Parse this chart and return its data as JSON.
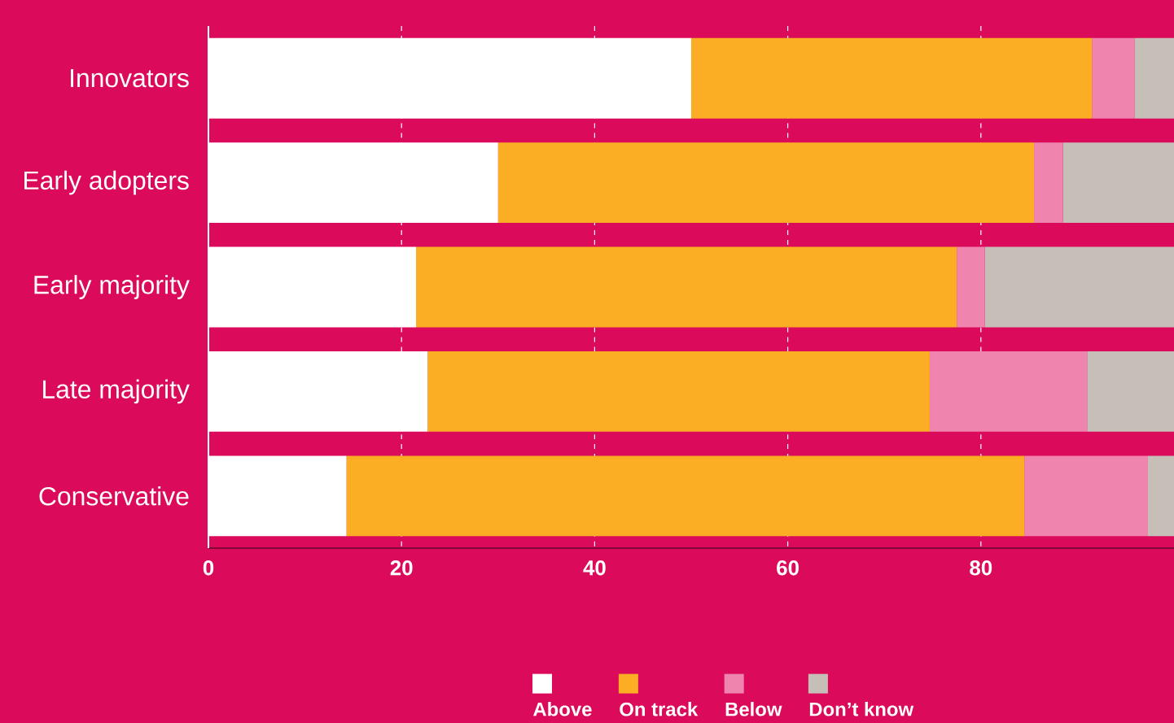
{
  "chart_data": {
    "type": "bar",
    "orientation": "horizontal",
    "stacked": true,
    "categories": [
      "Innovators",
      "Early adopters",
      "Early majority",
      "Late majority",
      "Conservative"
    ],
    "series": [
      {
        "name": "Above",
        "color": "#ffffff",
        "values": [
          50,
          30,
          21.5,
          22.7,
          14.3
        ]
      },
      {
        "name": "On track",
        "color": "#fbae24",
        "values": [
          41.5,
          55.5,
          56,
          52,
          70.2
        ]
      },
      {
        "name": "Below",
        "color": "#ef84ae",
        "values": [
          4.4,
          3,
          2.9,
          16.3,
          12.8
        ]
      },
      {
        "name": "Don’t know",
        "color": "#c6bfb8",
        "values": [
          4.1,
          11.5,
          19.6,
          9,
          2.7
        ]
      }
    ],
    "xlim": [
      0,
      100
    ],
    "xticks": [
      0,
      20,
      40,
      60,
      80
    ],
    "grid": "x",
    "legend": "bottom"
  }
}
